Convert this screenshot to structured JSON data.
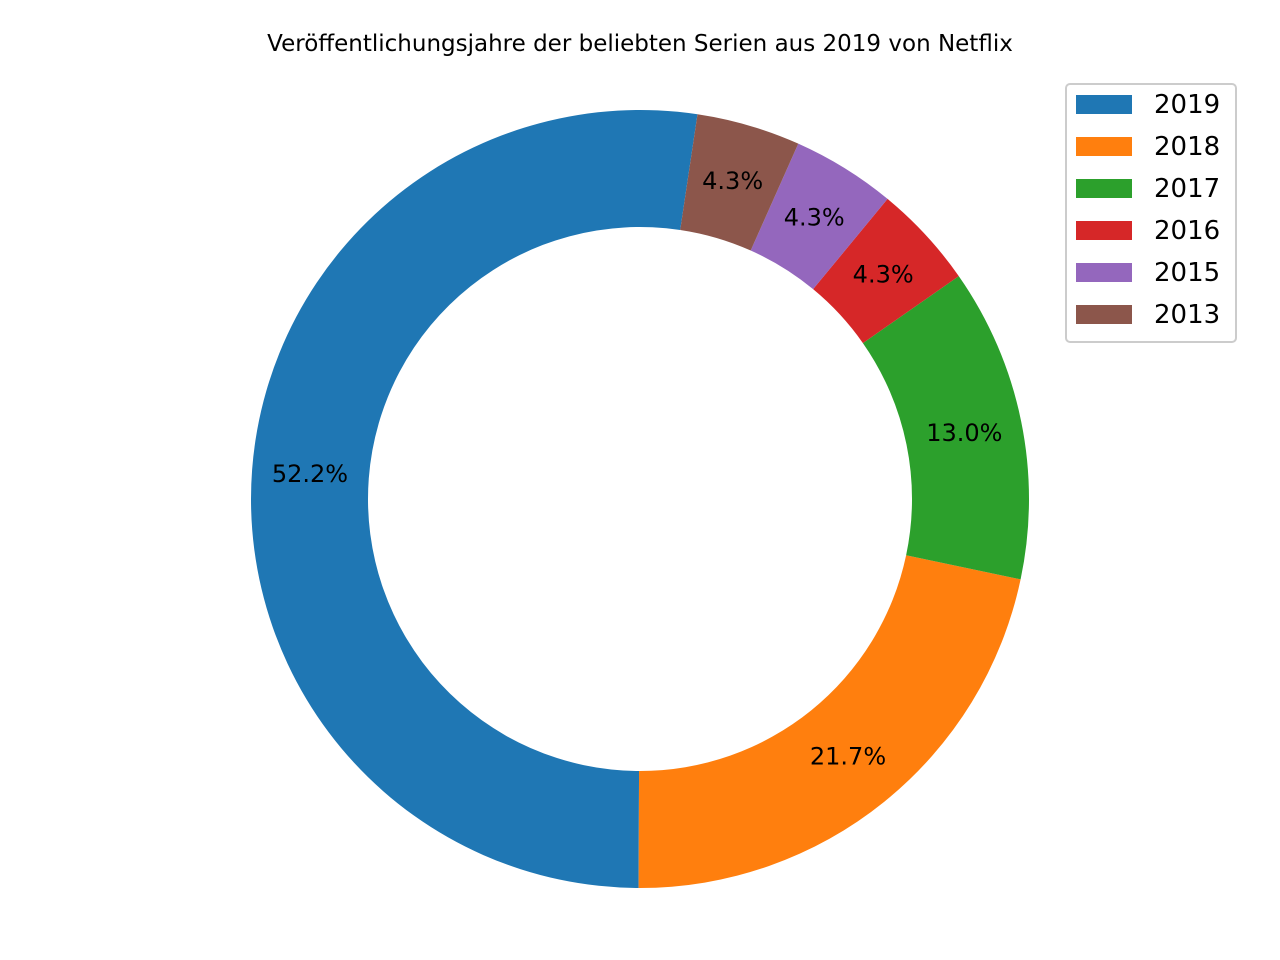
{
  "chart_data": {
    "type": "pie",
    "donut": true,
    "title": "Veröffentlichungsjahre der beliebten Serien aus 2019 von Netflix",
    "legend_position": "top-right",
    "slices": [
      {
        "label": "2019",
        "value": 52.2,
        "display": "52.2%",
        "color": "#1f77b4"
      },
      {
        "label": "2018",
        "value": 21.7,
        "display": "21.7%",
        "color": "#ff7f0e"
      },
      {
        "label": "2017",
        "value": 13.0,
        "display": "13.0%",
        "color": "#2ca02c"
      },
      {
        "label": "2016",
        "value": 4.3,
        "display": "4.3%",
        "color": "#d62728"
      },
      {
        "label": "2015",
        "value": 4.3,
        "display": "4.3%",
        "color": "#9467bd"
      },
      {
        "label": "2013",
        "value": 4.3,
        "display": "4.3%",
        "color": "#8c564b"
      }
    ]
  }
}
